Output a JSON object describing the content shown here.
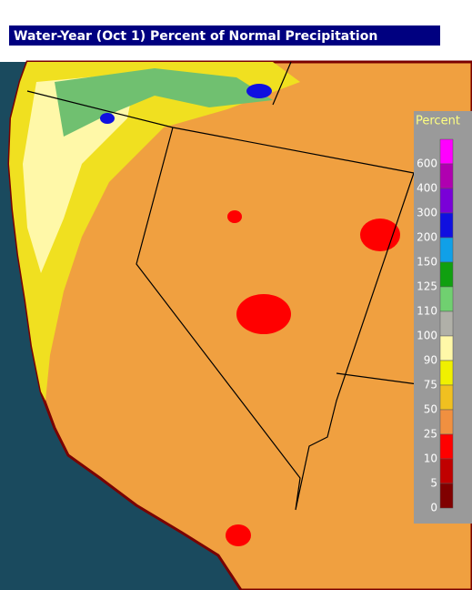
{
  "header": {
    "title": "Water-Year (Oct 1) Percent of Normal Precipitation"
  },
  "legend": {
    "title": "Percent",
    "entries": [
      {
        "label": "600",
        "color": "#ff00ff"
      },
      {
        "label": "400",
        "color": "#b000b0"
      },
      {
        "label": "300",
        "color": "#7a00d8"
      },
      {
        "label": "200",
        "color": "#1010e0"
      },
      {
        "label": "150",
        "color": "#10a0e8"
      },
      {
        "label": "125",
        "color": "#10a010"
      },
      {
        "label": "110",
        "color": "#70d070"
      },
      {
        "label": "100",
        "color": "#b0b0a8"
      },
      {
        "label": "90",
        "color": "#fff8a8"
      },
      {
        "label": "75",
        "color": "#f0f000"
      },
      {
        "label": "50",
        "color": "#f0c020"
      },
      {
        "label": "25",
        "color": "#f09040"
      },
      {
        "label": "10",
        "color": "#ff0000"
      },
      {
        "label": "5",
        "color": "#c00000"
      },
      {
        "label": "0",
        "color": "#800000"
      }
    ]
  }
}
